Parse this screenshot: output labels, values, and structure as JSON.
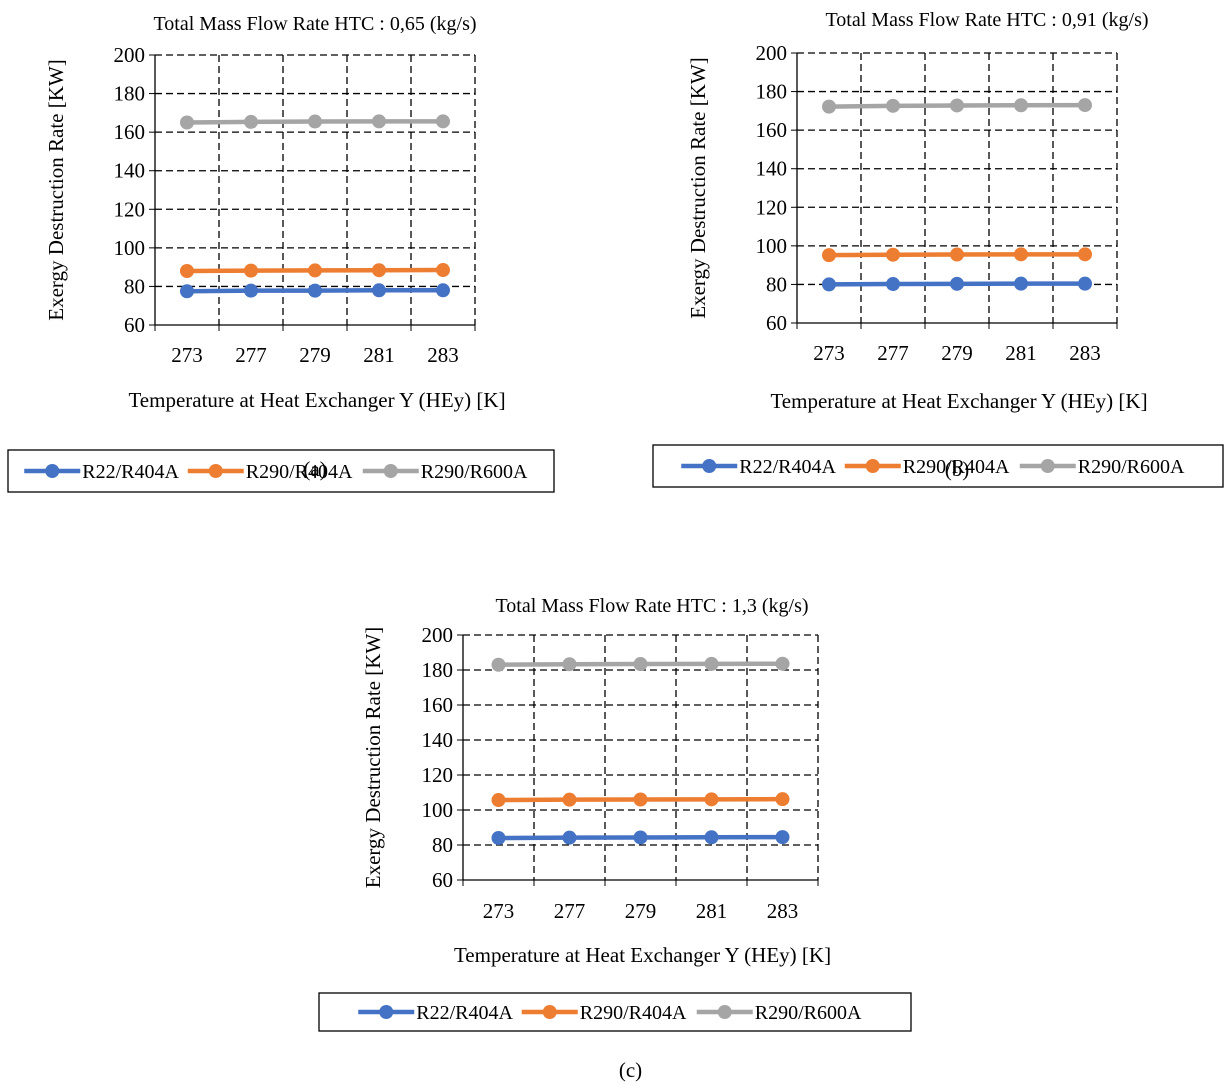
{
  "colors": {
    "s1": "#4472C4",
    "s2": "#ED7D31",
    "s3": "#A5A5A5",
    "grid": "#000000"
  },
  "chart_data": [
    {
      "type": "line",
      "panel_label": "(a)",
      "title": "Total Mass Flow Rate HTC : 0,65 (kg/s)",
      "xlabel": "Temperature at Heat Exchanger Y (HEy) [K]",
      "ylabel": "Exergy Destruction Rate [KW]",
      "x_tick_labels": [
        "273",
        "277",
        "279",
        "281",
        "283"
      ],
      "ylim": [
        60,
        200
      ],
      "y_ticks": [
        "60",
        "80",
        "100",
        "120",
        "140",
        "160",
        "180",
        "200"
      ],
      "grid": true,
      "legend_position": "bottom",
      "series": [
        {
          "name": "R22/R404A",
          "values": [
            77.5,
            77.8,
            77.8,
            78.0,
            78.0
          ]
        },
        {
          "name": "R290/R404A",
          "values": [
            88.0,
            88.2,
            88.3,
            88.4,
            88.5
          ]
        },
        {
          "name": "R290/R600A",
          "values": [
            165.0,
            165.3,
            165.5,
            165.6,
            165.6
          ]
        }
      ]
    },
    {
      "type": "line",
      "panel_label": "(b)",
      "title": "Total Mass Flow Rate HTC : 0,91 (kg/s)",
      "xlabel": "Temperature at Heat Exchanger Y (HEy) [K]",
      "ylabel": "Exergy Destruction Rate [KW]",
      "x_tick_labels": [
        "273",
        "277",
        "279",
        "281",
        "283"
      ],
      "ylim": [
        60,
        200
      ],
      "y_ticks": [
        "60",
        "80",
        "100",
        "120",
        "140",
        "160",
        "180",
        "200"
      ],
      "grid": true,
      "legend_position": "bottom",
      "series": [
        {
          "name": "R22/R404A",
          "values": [
            80.0,
            80.2,
            80.3,
            80.4,
            80.4
          ]
        },
        {
          "name": "R290/R404A",
          "values": [
            95.2,
            95.4,
            95.5,
            95.6,
            95.6
          ]
        },
        {
          "name": "R290/R600A",
          "values": [
            172.2,
            172.6,
            172.8,
            172.9,
            173.0
          ]
        }
      ]
    },
    {
      "type": "line",
      "panel_label": "(c)",
      "title": "Total Mass Flow Rate HTC : 1,3 (kg/s)",
      "xlabel": "Temperature at Heat Exchanger Y (HEy) [K]",
      "ylabel": "Exergy Destruction Rate [KW]",
      "x_tick_labels": [
        "273",
        "277",
        "279",
        "281",
        "283"
      ],
      "ylim": [
        60,
        200
      ],
      "y_ticks": [
        "60",
        "80",
        "100",
        "120",
        "140",
        "160",
        "180",
        "200"
      ],
      "grid": true,
      "legend_position": "bottom",
      "series": [
        {
          "name": "R22/R404A",
          "values": [
            84.0,
            84.2,
            84.3,
            84.4,
            84.5
          ]
        },
        {
          "name": "R290/R404A",
          "values": [
            105.7,
            105.9,
            106.0,
            106.1,
            106.2
          ]
        },
        {
          "name": "R290/R600A",
          "values": [
            183.0,
            183.3,
            183.4,
            183.5,
            183.6
          ]
        }
      ]
    }
  ]
}
